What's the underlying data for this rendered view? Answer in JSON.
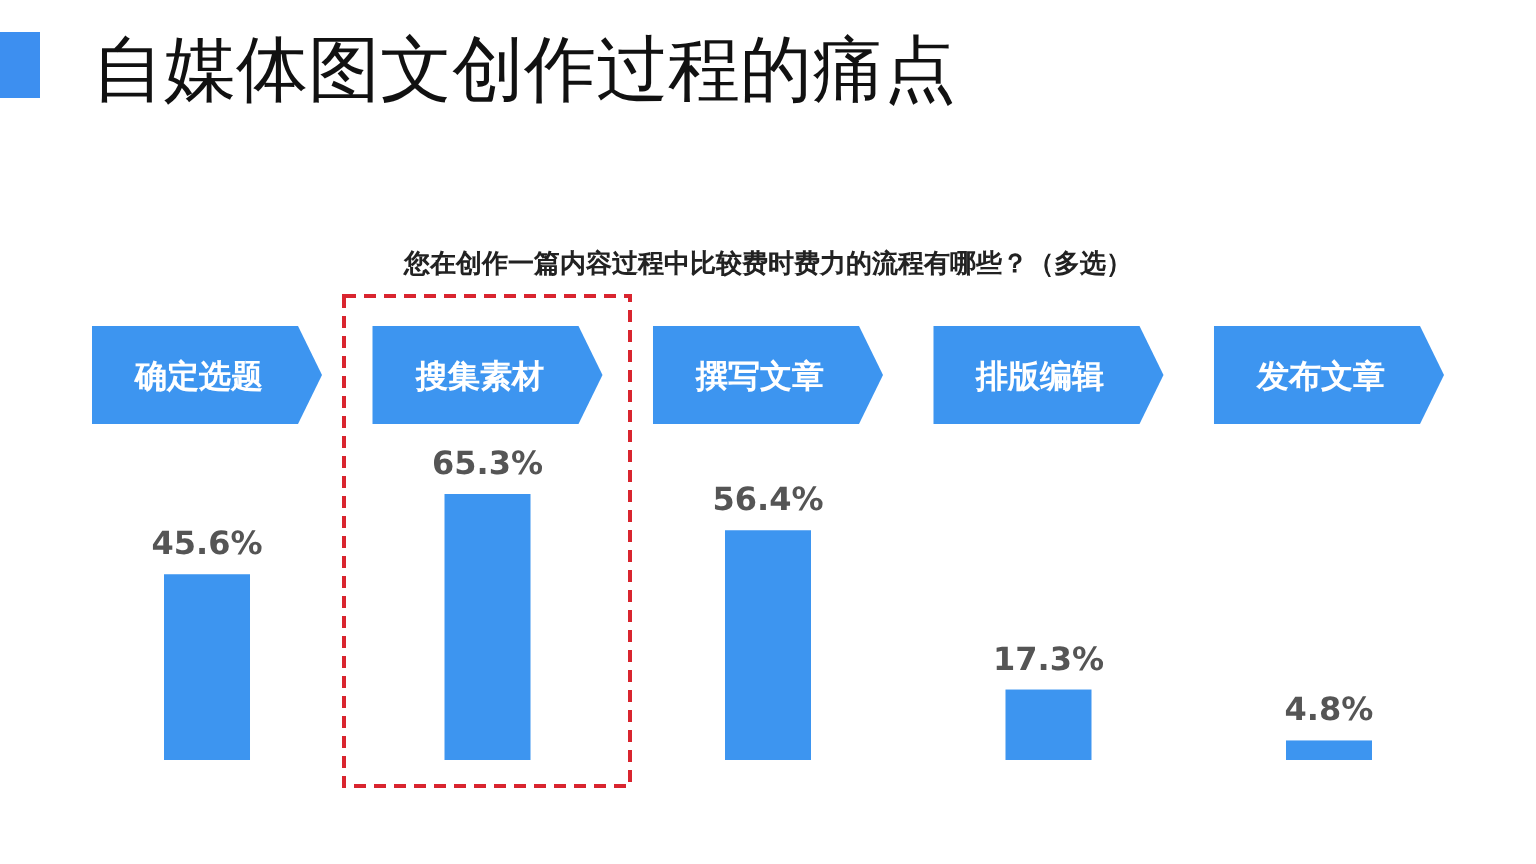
{
  "chart_data": {
    "type": "bar",
    "title": "自媒体图文创作过程的痛点",
    "subtitle": "您在创作一篇内容过程中比较费时费力的流程有哪些？（多选）",
    "categories": [
      "确定选题",
      "搜集素材",
      "撰写文章",
      "排版编辑",
      "发布文章"
    ],
    "values": [
      45.6,
      65.3,
      56.4,
      17.3,
      4.8
    ],
    "value_labels": [
      "45.6%",
      "65.3%",
      "56.4%",
      "17.3%",
      "4.8%"
    ],
    "color": "#3d95f0"
  }
}
